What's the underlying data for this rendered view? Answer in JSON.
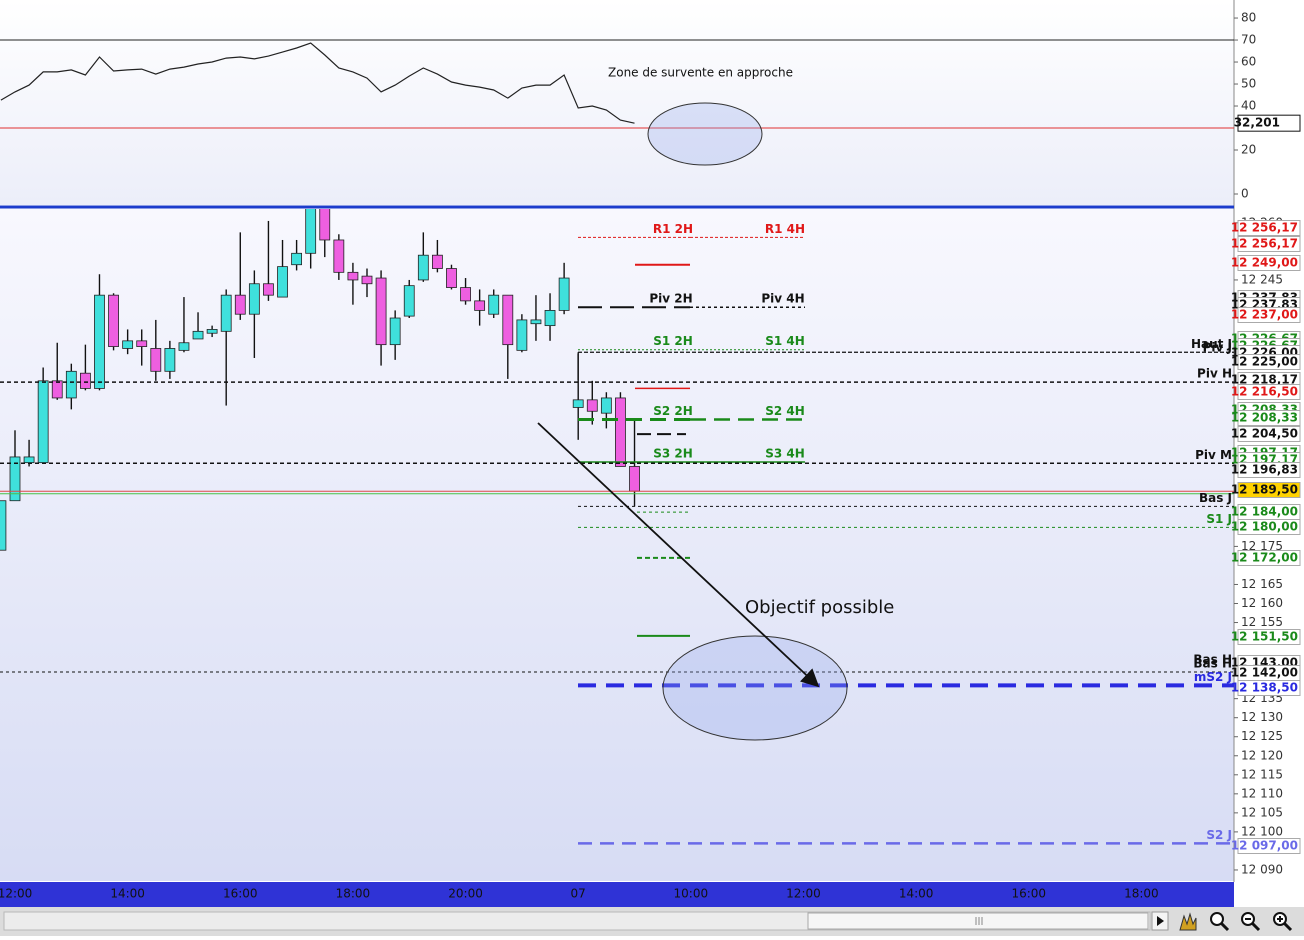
{
  "chart_data": [
    {
      "type": "line",
      "annotations": [
        "Zone de survente en approche"
      ],
      "ylim": [
        -5,
        88.2
      ],
      "yticks": [
        0,
        20,
        40,
        50,
        60,
        70,
        80
      ],
      "hlines": [
        {
          "value": 70,
          "color": "#222222"
        },
        {
          "value": 30,
          "color": "#e03030"
        }
      ],
      "series": [
        {
          "color": "#222222",
          "values": [
            42.7,
            46.4,
            49.5,
            55.5,
            55.5,
            56.4,
            54.1,
            62.3,
            55.9,
            56.4,
            56.8,
            54.5,
            56.8,
            57.7,
            59.1,
            60,
            61.8,
            62.3,
            61.4,
            62.7,
            64.5,
            66.4,
            68.6,
            63.2,
            57.3,
            55.5,
            52.7,
            46.4,
            49.5,
            53.6,
            57.3,
            54.5,
            50.9,
            49.5,
            48.6,
            47.3,
            43.6,
            48.2,
            49.5,
            49.5,
            54.1,
            39.1,
            40,
            38.2,
            33.6,
            32.201,
            null,
            null,
            null,
            null,
            null,
            null,
            null,
            null,
            null,
            null,
            null,
            null,
            null,
            null,
            null,
            null,
            null,
            null,
            null,
            null,
            null,
            null,
            null,
            null,
            null,
            null,
            null,
            null,
            null,
            null,
            null,
            null,
            null,
            null,
            null,
            null,
            null,
            null,
            null,
            null,
            null,
            null
          ],
          "value_labels": [
            null,
            null,
            null,
            null,
            null,
            null,
            null,
            null,
            null,
            null,
            null,
            null,
            null,
            null,
            null,
            null,
            null,
            null,
            null,
            null,
            null,
            null,
            null,
            null,
            null,
            null,
            null,
            null,
            null,
            null,
            null,
            null,
            null,
            null,
            null,
            null,
            null,
            null,
            null,
            null,
            null,
            null,
            null,
            null,
            null,
            "32,201",
            null,
            null,
            null,
            null,
            null,
            null,
            null,
            null,
            null,
            null,
            null,
            null,
            null,
            null,
            null,
            null,
            null,
            null,
            null,
            null,
            null,
            null,
            null,
            null,
            null,
            null,
            null,
            null,
            null,
            null,
            null,
            null,
            null,
            null,
            null,
            null,
            null,
            null,
            null,
            null,
            null,
            null
          ]
        }
      ]
    },
    {
      "type": "candlestick",
      "annotations": [
        "Objectif possible"
      ],
      "categories": [
        null,
        "12:00",
        null,
        null,
        null,
        null,
        null,
        null,
        null,
        "14:00",
        null,
        null,
        null,
        null,
        null,
        null,
        null,
        "16:00",
        null,
        null,
        null,
        null,
        null,
        null,
        null,
        "18:00",
        null,
        null,
        null,
        null,
        null,
        null,
        null,
        "20:00",
        null,
        null,
        null,
        null,
        null,
        null,
        null,
        "07",
        null,
        null,
        null,
        null,
        null,
        null,
        null,
        "10:00",
        null,
        null,
        null,
        null,
        null,
        null,
        null,
        "12:00",
        null,
        null,
        null,
        null,
        null,
        null,
        null,
        "14:00",
        null,
        null,
        null,
        null,
        null,
        null,
        null,
        "16:00",
        null,
        null,
        null,
        null,
        null,
        null,
        null,
        "18:00",
        null,
        null,
        null,
        null,
        null,
        null
      ],
      "open": [
        12174,
        12187,
        12197,
        12197,
        12218.5,
        12214,
        12220.5,
        12216.5,
        12241,
        12227,
        12229,
        12227,
        12221,
        12226.5,
        12229.5,
        12231,
        12231.5,
        12241,
        12236,
        12244,
        12240.5,
        12249,
        12252,
        12264,
        12255.5,
        12247,
        12246,
        12245.5,
        12228,
        12235.5,
        12245,
        12251.5,
        12248,
        12243,
        12239.5,
        12236,
        12241,
        12226.5,
        12233.5,
        12233,
        12237,
        12211.5,
        12213.5,
        12210,
        12214,
        12196,
        null,
        null,
        null,
        null,
        null,
        null,
        null,
        null,
        null,
        null,
        null,
        null,
        null,
        null,
        null,
        null,
        null,
        null,
        null,
        null,
        null,
        null,
        null,
        null,
        null,
        null,
        null,
        null,
        null,
        null,
        null,
        null,
        null,
        null,
        null,
        null,
        null,
        null,
        null,
        null,
        null,
        null
      ],
      "high": [
        12187,
        12205.5,
        12203,
        12222,
        12228.5,
        12223,
        12228,
        12246.5,
        12241.5,
        12232,
        12232,
        12234.5,
        12229,
        12240.5,
        12236.5,
        12233,
        12242.5,
        12257.5,
        12247.5,
        12260.5,
        12255.5,
        12255.5,
        12266,
        12266,
        12257,
        12249.5,
        12248,
        12247.5,
        12237,
        12245,
        12257.5,
        12255.5,
        12249,
        12245.5,
        12242.5,
        12242.5,
        12241,
        12236,
        12241,
        12241.5,
        12249.5,
        12226,
        12218.5,
        12215.5,
        12215.5,
        12208,
        null,
        null,
        null,
        null,
        null,
        null,
        null,
        null,
        null,
        null,
        null,
        null,
        null,
        null,
        null,
        null,
        null,
        null,
        null,
        null,
        null,
        null,
        null,
        null,
        null,
        null,
        null,
        null,
        null,
        null,
        null,
        null,
        null,
        null,
        null,
        null,
        null,
        null,
        null,
        null,
        null,
        null
      ],
      "low": [
        12174,
        12187,
        12196,
        12197,
        12213.5,
        12211,
        12216,
        12216,
        12226.5,
        12225.5,
        12222.5,
        12218.5,
        12219,
        12226,
        12229.5,
        12230,
        12212,
        12234.5,
        12224.5,
        12239.5,
        12240.5,
        12247.5,
        12248,
        12251,
        12245,
        12238.5,
        12240.5,
        12222.5,
        12224,
        12235,
        12244.5,
        12247,
        12242.5,
        12238.5,
        12233,
        12235,
        12219,
        12226,
        12229,
        12229,
        12236,
        12203,
        12207,
        12206,
        12196,
        12185.5,
        null,
        null,
        null,
        null,
        null,
        null,
        null,
        null,
        null,
        null,
        null,
        null,
        null,
        null,
        null,
        null,
        null,
        null,
        null,
        null,
        null,
        null,
        null,
        null,
        null,
        null,
        null,
        null,
        null,
        null,
        null,
        null,
        null,
        null,
        null,
        null,
        null,
        null,
        null,
        null,
        null,
        null
      ],
      "close": [
        12187,
        12198.5,
        12198.5,
        12218.5,
        12214,
        12221,
        12216.5,
        12241,
        12227.5,
        12229,
        12227.5,
        12221,
        12227,
        12228.5,
        12231.5,
        12232,
        12241,
        12236,
        12244,
        12241,
        12248.5,
        12252,
        12264,
        12255.5,
        12247,
        12245,
        12244,
        12228,
        12235,
        12243.5,
        12251.5,
        12248,
        12243,
        12239.5,
        12237,
        12241,
        12228,
        12234.5,
        12234.5,
        12237,
        12245.5,
        12213.5,
        12210.5,
        12214,
        12196,
        12189.5,
        null,
        null,
        null,
        null,
        null,
        null,
        null,
        null,
        null,
        null,
        null,
        null,
        null,
        null,
        null,
        null,
        null,
        null,
        null,
        null,
        null,
        null,
        null,
        null,
        null,
        null,
        null,
        null,
        null,
        null,
        null,
        null,
        null,
        null,
        null,
        null,
        null,
        null,
        null,
        null,
        null,
        null
      ],
      "up_color": "#3fe0dc",
      "down_color": "#ee5fe0",
      "ylim": [
        12087.1,
        12263.9
      ],
      "yticks": [
        {
          "value": 12260,
          "label": "12 260"
        },
        {
          "value": 12245,
          "label": "12 245"
        },
        {
          "value": 12175,
          "label": "12 175"
        },
        {
          "value": 12165,
          "label": "12 165"
        },
        {
          "value": 12160,
          "label": "12 160"
        },
        {
          "value": 12155,
          "label": "12 155"
        },
        {
          "value": 12135,
          "label": "12 135"
        },
        {
          "value": 12130,
          "label": "12 130"
        },
        {
          "value": 12125,
          "label": "12 125"
        },
        {
          "value": 12120,
          "label": "12 120"
        },
        {
          "value": 12115,
          "label": "12 115"
        },
        {
          "value": 12110,
          "label": "12 110"
        },
        {
          "value": 12105,
          "label": "12 105"
        },
        {
          "value": 12100,
          "label": "12 100"
        },
        {
          "value": 12090,
          "label": "12 090"
        }
      ],
      "levels": [
        {
          "name": "R1 2H",
          "value": 12256.17,
          "value_label": "12 256,17",
          "color": "#e01818"
        },
        {
          "name": "R1 4H",
          "value": 12256.17,
          "value_label": "12 256,17",
          "color": "#e01818"
        },
        {
          "value": 12249,
          "value_label": "12 249,00",
          "color": "#e01818"
        },
        {
          "name": "Piv 2H",
          "value": 12237.83,
          "value_label": "12 237,83",
          "color": "#111111"
        },
        {
          "name": "Piv 4H",
          "value": 12237.83,
          "value_label": "12 237,83",
          "color": "#111111"
        },
        {
          "value": 12237,
          "value_label": "12 237,00",
          "color": "#e01818"
        },
        {
          "name": "S1 2H",
          "value": 12226.67,
          "value_label": "12 226,67",
          "color": "#1a8a1a"
        },
        {
          "name": "S1 4H",
          "value": 12226.67,
          "value_label": "12 226,67",
          "color": "#1a8a1a"
        },
        {
          "name": "Haut J",
          "value": 12226,
          "value_label": "12 226,00",
          "color": "#111111"
        },
        {
          "name": "Piv J",
          "value": 12225,
          "value_label": "12 225,00",
          "color": "#111111"
        },
        {
          "name": "Piv H",
          "value": 12218.17,
          "value_label": "12 218,17",
          "color": "#111111"
        },
        {
          "value": 12216.5,
          "value_label": "12 216,50",
          "color": "#e01818"
        },
        {
          "name": "S2 2H",
          "value": 12208.33,
          "value_label": "12 208,33",
          "color": "#1a8a1a"
        },
        {
          "name": "S2 4H",
          "value": 12208.33,
          "value_label": "12 208,33",
          "color": "#1a8a1a"
        },
        {
          "value": 12204.5,
          "value_label": "12 204,50",
          "color": "#111111"
        },
        {
          "name": "S3 2H",
          "value": 12197.17,
          "value_label": "12 197,17",
          "color": "#1a8a1a"
        },
        {
          "name": "S3 4H",
          "value": 12197.17,
          "value_label": "12 197,17",
          "color": "#1a8a1a"
        },
        {
          "name": "Piv M",
          "value": 12196.83,
          "value_label": "12 196,83",
          "color": "#111111"
        },
        {
          "value": 12189.5,
          "value_label": "12 189,50",
          "color": "#111111",
          "box_color": "#ffd200",
          "line_colors": [
            "#e04848",
            "#48c048"
          ]
        },
        {
          "name": "Bas J",
          "value": 12185.5,
          "color": "#111111"
        },
        {
          "value": 12184,
          "value_label": "12 184,00",
          "color": "#1a8a1a"
        },
        {
          "name": "S1 J",
          "value": 12180,
          "value_label": "12 180,00",
          "color": "#1a8a1a"
        },
        {
          "value": 12172,
          "value_label": "12 172,00",
          "color": "#1a8a1a"
        },
        {
          "value": 12151.5,
          "value_label": "12 151,50",
          "color": "#1a8a1a"
        },
        {
          "name": "Bas H",
          "value": 12143,
          "value_label": "12 143,00",
          "color": "#111111"
        },
        {
          "name": "Bas H",
          "value": 12142,
          "value_label": "12 142,00",
          "color": "#111111"
        },
        {
          "name": "mS2 J",
          "value": 12138.5,
          "value_label": "12 138,50",
          "color": "#2a2ae0"
        },
        {
          "name": "S2 J",
          "value": 12097,
          "value_label": "12 097,00",
          "color": "#6a6ae8"
        }
      ]
    }
  ]
}
